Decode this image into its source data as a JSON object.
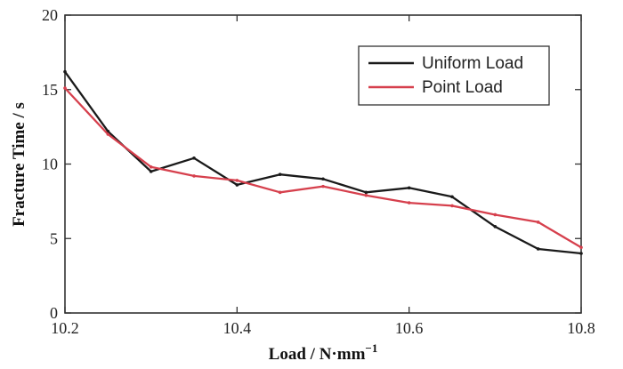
{
  "chart_data": {
    "type": "line",
    "xlabel": "Load / N·mm",
    "xlabel_superscript": "−1",
    "ylabel": "Fracture Time / s",
    "xlim": [
      10.2,
      10.8
    ],
    "ylim": [
      0,
      20
    ],
    "xticks": [
      "10.2",
      "10.4",
      "10.6",
      "10.8"
    ],
    "xtick_values": [
      10.2,
      10.4,
      10.6,
      10.8
    ],
    "yticks": [
      "0",
      "5",
      "10",
      "15",
      "20"
    ],
    "ytick_values": [
      0,
      5,
      10,
      15,
      20
    ],
    "grid": false,
    "legend_position": "top-right",
    "series": [
      {
        "name": "Uniform Load",
        "color": "#1a1a1a",
        "x": [
          10.2,
          10.25,
          10.3,
          10.35,
          10.4,
          10.45,
          10.5,
          10.55,
          10.6,
          10.65,
          10.7,
          10.75,
          10.8
        ],
        "y": [
          16.2,
          12.2,
          9.5,
          10.4,
          8.6,
          9.3,
          9.0,
          8.1,
          8.4,
          7.8,
          5.8,
          4.3,
          4.0
        ]
      },
      {
        "name": "Point Load",
        "color": "#d6404d",
        "x": [
          10.2,
          10.25,
          10.3,
          10.35,
          10.4,
          10.45,
          10.5,
          10.55,
          10.6,
          10.65,
          10.7,
          10.75,
          10.8
        ],
        "y": [
          15.1,
          12.0,
          9.8,
          9.2,
          8.9,
          8.1,
          8.5,
          7.9,
          7.4,
          7.2,
          6.6,
          6.1,
          4.4
        ]
      }
    ]
  }
}
